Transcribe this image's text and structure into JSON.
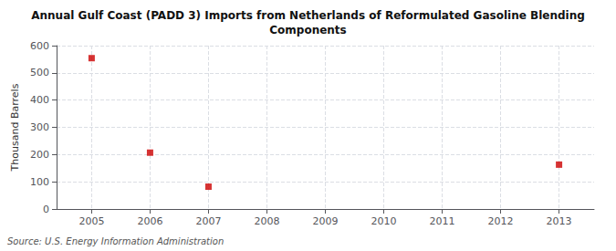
{
  "chart_data": {
    "type": "scatter",
    "title": "Annual Gulf Coast (PADD 3) Imports from Netherlands of Reformulated Gasoline Blending\nComponents",
    "y_label": "Thousand Barrels",
    "annotations": [
      "Source: U.S. Energy Information Administration"
    ],
    "x": [
      2005,
      2006,
      2007,
      2013
    ],
    "values": [
      554,
      207,
      82,
      163
    ],
    "color": "#cc0000",
    "marker": "square",
    "xlim": [
      2004.4,
      2013.6
    ],
    "xticks": [
      2005,
      2006,
      2007,
      2008,
      2009,
      2010,
      2011,
      2012,
      2013
    ],
    "ylim": [
      0,
      600
    ],
    "yticks": [
      0,
      100,
      200,
      300,
      400,
      500,
      600
    ],
    "grid": true
  }
}
